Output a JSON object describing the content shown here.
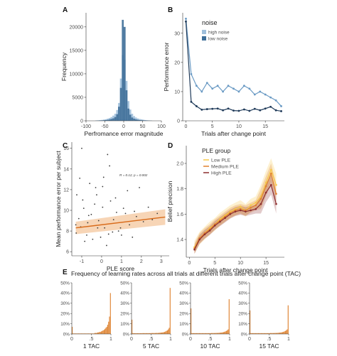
{
  "colors": {
    "high_noise": "#9fbfdb",
    "low_noise": "#3e6e98",
    "low_noise_line": "#1f3a59",
    "scatter": "#3a3a3a",
    "fit": "#d96b1a",
    "fit_band": "#f0b27a",
    "low_ple": "#f7c948",
    "medium_ple": "#e0812f",
    "high_ple": "#8c2d2d",
    "tac_bar": "#e0893a"
  },
  "panel_letters": {
    "a": "A",
    "b": "B",
    "c": "C",
    "d": "D",
    "e": "E"
  },
  "chart_data": [
    {
      "panel": "A",
      "type": "bar",
      "xlabel": "Perfromance error magnitude",
      "ylabel": "Frequency",
      "xlim": [
        -100,
        100
      ],
      "ylim": [
        0,
        23000
      ],
      "xticks": [
        "-100",
        "-50",
        "0",
        "50",
        "100"
      ],
      "yticks": [
        "0",
        "5000",
        "10000",
        "15000",
        "20000"
      ],
      "bin_centers": [
        -72.5,
        -67.5,
        -62.5,
        -57.5,
        -52.5,
        -47.5,
        -42.5,
        -37.5,
        -32.5,
        -27.5,
        -22.5,
        -17.5,
        -12.5,
        -7.5,
        -2.5,
        2.5,
        7.5,
        12.5,
        17.5,
        22.5,
        27.5,
        32.5,
        37.5,
        42.5,
        47.5,
        52.5,
        57.5,
        62.5,
        67.5,
        72.5
      ],
      "series": [
        {
          "name": "high noise",
          "values": [
            60,
            90,
            140,
            180,
            250,
            330,
            450,
            600,
            800,
            1100,
            1500,
            2300,
            3800,
            9000,
            14000,
            13000,
            8500,
            4200,
            2400,
            1500,
            1000,
            700,
            500,
            380,
            300,
            220,
            160,
            110,
            80,
            50
          ]
        },
        {
          "name": "low noise",
          "values": [
            30,
            40,
            60,
            80,
            110,
            150,
            200,
            280,
            380,
            520,
            800,
            1400,
            3000,
            7000,
            21500,
            20000,
            6500,
            2600,
            1300,
            700,
            450,
            300,
            210,
            150,
            110,
            80,
            60,
            40,
            30,
            20
          ]
        }
      ]
    },
    {
      "panel": "B",
      "type": "line",
      "legend_title": "noise",
      "legend_position": "top-left",
      "xlabel": "Trials after change point",
      "ylabel": "Performance error",
      "xlim": [
        -0.6,
        18.6
      ],
      "ylim": [
        0,
        37
      ],
      "xticks": [
        "0",
        "5",
        "10",
        "15"
      ],
      "yticks": [
        "0",
        "10",
        "20",
        "30"
      ],
      "x": [
        0,
        1,
        2,
        3,
        4,
        5,
        6,
        7,
        8,
        9,
        10,
        11,
        12,
        13,
        14,
        15,
        16,
        17,
        18
      ],
      "series": [
        {
          "name": "high noise",
          "values": [
            35,
            16,
            12,
            10,
            13,
            11,
            12,
            10,
            12,
            11,
            10,
            12,
            11,
            9,
            10,
            9,
            8,
            7,
            5
          ]
        },
        {
          "name": "low noise",
          "values": [
            34,
            6.5,
            5,
            3.8,
            4,
            4.1,
            4.2,
            3.6,
            4.2,
            3.5,
            3.4,
            3.9,
            3.4,
            4.1,
            3.6,
            4.2,
            4.8,
            3.6,
            3.3
          ]
        }
      ]
    },
    {
      "panel": "C",
      "type": "scatter",
      "xlabel": "PLE score",
      "ylabel": "Mean performance error per subject",
      "annotation": "R = 0.12, p = 0.002",
      "xlim": [
        -1.5,
        3.4
      ],
      "ylim": [
        5.6,
        16.6
      ],
      "xticks": [
        "-1",
        "0",
        "1",
        "2",
        "3"
      ],
      "yticks": [
        "6",
        "8",
        "10",
        "12",
        "14",
        "16"
      ],
      "fit_line": {
        "x": [
          -1.3,
          3.2
        ],
        "y": [
          8.3,
          9.35
        ],
        "ci_lo": [
          7.7,
          8.6
        ],
        "ci_hi": [
          8.9,
          10.1
        ]
      },
      "points": [
        [
          -1.28,
          7.8
        ],
        [
          -1.15,
          9.2
        ],
        [
          -1.05,
          8.4
        ],
        [
          -0.9,
          10.2
        ],
        [
          -0.7,
          8.8
        ],
        [
          -0.52,
          9.6
        ],
        [
          -0.25,
          11.5
        ],
        [
          0.05,
          12.3
        ],
        [
          0.4,
          14.3
        ],
        [
          0.3,
          15.4
        ],
        [
          0.1,
          13.2
        ],
        [
          -0.3,
          12.2
        ],
        [
          -0.6,
          12.6
        ],
        [
          -1.1,
          13.1
        ],
        [
          -1.25,
          11.5
        ],
        [
          -1.0,
          16.0
        ],
        [
          0.75,
          9.8
        ],
        [
          1.1,
          10.2
        ],
        [
          1.4,
          8.6
        ],
        [
          1.75,
          9.4
        ],
        [
          2.1,
          8.9
        ],
        [
          2.35,
          10.3
        ],
        [
          2.8,
          9.7
        ],
        [
          1.3,
          11.9
        ],
        [
          1.55,
          7.4
        ],
        [
          -0.45,
          7.2
        ],
        [
          -0.05,
          7.4
        ],
        [
          0.55,
          7.9
        ],
        [
          0.95,
          8.3
        ],
        [
          -0.85,
          7.0
        ],
        [
          0.25,
          6.6
        ],
        [
          0.7,
          11.2
        ],
        [
          -0.35,
          10.6
        ],
        [
          1.9,
          12.2
        ],
        [
          0.45,
          10.9
        ],
        [
          -0.15,
          9.0
        ],
        [
          0.15,
          8.3
        ],
        [
          -0.65,
          9.5
        ],
        [
          0.85,
          8.0
        ],
        [
          1.2,
          9.7
        ],
        [
          -1.3,
          8.6
        ],
        [
          -0.95,
          11.0
        ],
        [
          -0.2,
          8.3
        ],
        [
          0.6,
          9.1
        ],
        [
          1.0,
          7.6
        ],
        [
          1.65,
          9.9
        ],
        [
          2.55,
          9.1
        ],
        [
          -0.75,
          7.6
        ],
        [
          0.35,
          7.7
        ],
        [
          0.05,
          10.3
        ]
      ]
    },
    {
      "panel": "D",
      "type": "line",
      "legend_title": "PLE group",
      "legend_position": "top-left",
      "xlabel": "Trials after change point",
      "ylabel": "Belief precision",
      "xlim": [
        -0.6,
        18.6
      ],
      "ylim": [
        1.26,
        2.14
      ],
      "xticks": [
        "0",
        "5",
        "10",
        "15"
      ],
      "yticks": [
        "1.4",
        "1.6",
        "1.8",
        "2.0"
      ],
      "x": [
        1,
        2,
        3,
        4,
        5,
        6,
        7,
        8,
        9,
        10,
        11,
        12,
        13,
        14,
        15,
        16,
        17
      ],
      "series": [
        {
          "name": "Low PLE",
          "values": [
            1.34,
            1.41,
            1.45,
            1.49,
            1.52,
            1.56,
            1.59,
            1.62,
            1.64,
            1.66,
            1.63,
            1.67,
            1.69,
            1.74,
            1.85,
            1.95,
            1.83
          ]
        },
        {
          "name": "Medium PLE",
          "values": [
            1.33,
            1.41,
            1.45,
            1.48,
            1.52,
            1.55,
            1.58,
            1.61,
            1.63,
            1.64,
            1.63,
            1.65,
            1.67,
            1.72,
            1.82,
            1.92,
            1.76
          ]
        },
        {
          "name": "High PLE",
          "values": [
            1.32,
            1.4,
            1.44,
            1.47,
            1.51,
            1.54,
            1.57,
            1.6,
            1.62,
            1.63,
            1.62,
            1.63,
            1.64,
            1.68,
            1.77,
            1.83,
            1.68
          ]
        }
      ]
    },
    {
      "panel": "E",
      "type": "bar",
      "title": "Frequency of learning rates across all trials at different trials after change point (TAC)",
      "xticks": [
        "0",
        ".5",
        "1"
      ],
      "yticks": [
        "0%",
        "10%",
        "20%",
        "30%",
        "40%",
        "50%"
      ],
      "ylim": [
        0,
        50
      ],
      "subplots": [
        {
          "label": "1 TAC",
          "values": [
            7,
            0.5,
            0.5,
            0.5,
            0.5,
            0.5,
            0.5,
            0.5,
            0.5,
            0.5,
            0.5,
            0.5,
            0.5,
            0.5,
            0.5,
            0.5,
            0.5,
            0.5,
            0.5,
            0.5,
            0.5,
            0.5,
            0.5,
            0.5,
            0.5,
            1,
            1,
            1,
            1.5,
            1.5,
            2,
            2,
            2.5,
            3,
            3.5,
            4,
            5,
            6,
            7,
            9,
            12,
            17,
            40
          ]
        },
        {
          "label": "5 TAC",
          "values": [
            14,
            0.8,
            0.7,
            0.7,
            0.7,
            0.7,
            0.7,
            0.7,
            0.7,
            0.7,
            0.7,
            0.8,
            0.8,
            0.8,
            0.8,
            0.8,
            0.8,
            0.8,
            0.8,
            0.8,
            0.8,
            0.9,
            0.9,
            0.9,
            0.9,
            0.9,
            1,
            1,
            1,
            1.1,
            1.2,
            1.3,
            1.4,
            1.5,
            1.7,
            2,
            2.4,
            3,
            3.5,
            4.5,
            6,
            45
          ]
        },
        {
          "label": "10 TAC",
          "values": [
            25,
            0.8,
            0.8,
            0.8,
            0.8,
            0.8,
            0.8,
            0.8,
            0.8,
            0.8,
            0.8,
            0.8,
            0.8,
            0.8,
            0.8,
            0.8,
            0.8,
            0.8,
            0.8,
            0.8,
            0.8,
            0.8,
            0.9,
            0.9,
            0.9,
            0.9,
            0.9,
            1,
            1,
            1,
            1.1,
            1.2,
            1.3,
            1.4,
            1.6,
            1.8,
            2.1,
            2.5,
            3,
            3.6,
            4.5,
            34
          ]
        },
        {
          "label": "15 TAC",
          "values": [
            23,
            0.8,
            0.8,
            0.8,
            0.8,
            0.8,
            0.8,
            0.8,
            0.8,
            0.8,
            0.8,
            0.8,
            0.8,
            0.8,
            0.8,
            0.8,
            0.8,
            0.8,
            0.8,
            0.8,
            0.8,
            0.8,
            0.9,
            0.9,
            0.9,
            0.9,
            0.9,
            1,
            1,
            1,
            1.1,
            1.2,
            1.3,
            1.4,
            1.6,
            1.8,
            2.1,
            2.5,
            3,
            3.6,
            4.5,
            28
          ]
        }
      ]
    }
  ]
}
